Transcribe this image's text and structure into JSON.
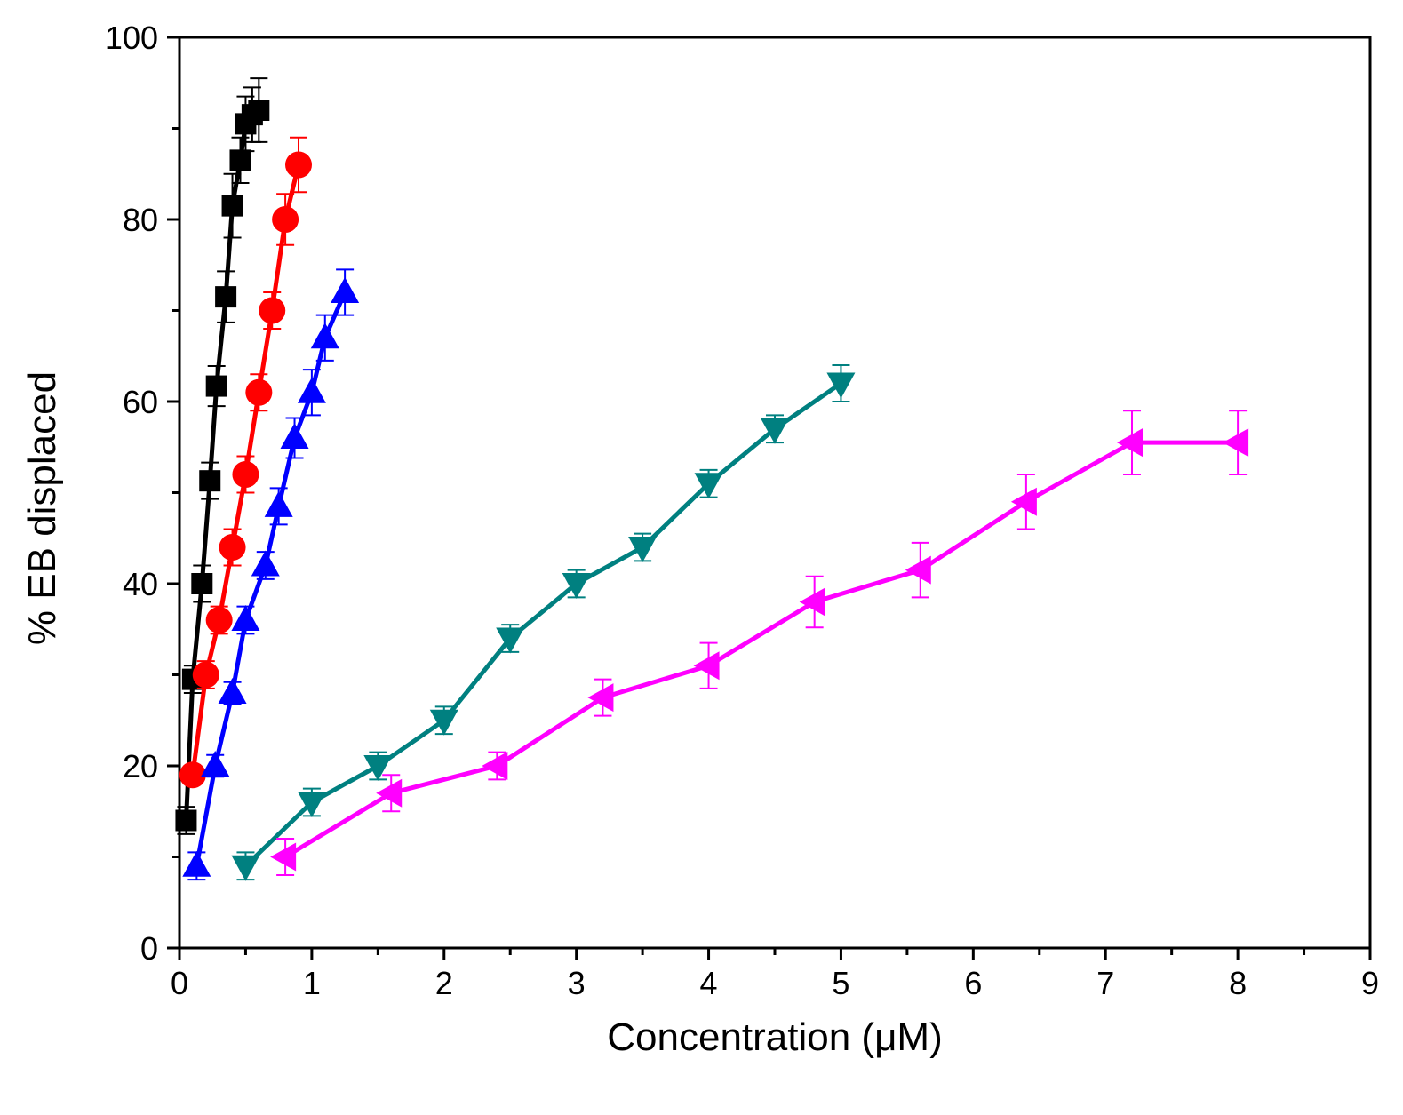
{
  "chart_data": {
    "type": "line",
    "title": "",
    "xlabel": "Concentration (μM)",
    "ylabel": "% EB displaced",
    "xlim": [
      0,
      9
    ],
    "ylim": [
      0,
      100
    ],
    "xticks": [
      0,
      1,
      2,
      3,
      4,
      5,
      6,
      7,
      8,
      9
    ],
    "yticks": [
      0,
      20,
      40,
      60,
      80,
      100
    ],
    "xtick_labels": [
      "0",
      "1",
      "2",
      "3",
      "4",
      "5",
      "6",
      "7",
      "8",
      "9"
    ],
    "ytick_labels": [
      "0",
      "20",
      "40",
      "60",
      "80",
      "100"
    ],
    "legend": "none",
    "series": [
      {
        "name": "black squares",
        "color": "#000000",
        "marker": "square",
        "x": [
          0.05,
          0.1,
          0.17,
          0.23,
          0.28,
          0.35,
          0.4,
          0.46,
          0.5,
          0.55,
          0.6
        ],
        "y": [
          14,
          29.5,
          40,
          51.3,
          61.7,
          71.5,
          81.5,
          86.5,
          90.5,
          91.5,
          92
        ],
        "err": [
          1.5,
          1.5,
          2,
          2,
          2.2,
          2.8,
          3.5,
          2.5,
          3,
          3,
          3.5
        ]
      },
      {
        "name": "red circles",
        "color": "#ff0000",
        "marker": "circle",
        "x": [
          0.1,
          0.2,
          0.3,
          0.4,
          0.5,
          0.6,
          0.7,
          0.8,
          0.9
        ],
        "y": [
          19,
          30,
          36,
          44,
          52,
          61,
          70,
          80,
          86
        ],
        "err": [
          1,
          1.5,
          1.5,
          2,
          2,
          2,
          2,
          2.8,
          3
        ]
      },
      {
        "name": "blue triangles up",
        "color": "#0000ff",
        "marker": "triangle-up",
        "x": [
          0.13,
          0.27,
          0.4,
          0.5,
          0.65,
          0.75,
          0.87,
          1.0,
          1.1,
          1.25
        ],
        "y": [
          9,
          20,
          28,
          36,
          42,
          48.5,
          56,
          61,
          67,
          72
        ],
        "err": [
          1.5,
          1.2,
          1.2,
          1.5,
          1.5,
          2,
          2.2,
          2.5,
          2.5,
          2.5
        ]
      },
      {
        "name": "teal triangles down",
        "color": "#008080",
        "marker": "triangle-down",
        "x": [
          0.5,
          1.0,
          1.5,
          2.0,
          2.5,
          3.0,
          3.5,
          4.0,
          4.5,
          5.0
        ],
        "y": [
          9,
          16,
          20,
          25,
          34,
          40,
          44,
          51,
          57,
          62
        ],
        "err": [
          1.5,
          1.5,
          1.5,
          1.5,
          1.5,
          1.5,
          1.5,
          1.5,
          1.5,
          2
        ]
      },
      {
        "name": "magenta triangles left",
        "color": "#ff00ff",
        "marker": "triangle-left",
        "x": [
          0.8,
          1.6,
          2.4,
          3.2,
          4.0,
          4.8,
          5.6,
          6.4,
          7.2,
          8.0
        ],
        "y": [
          10,
          17,
          20,
          27.5,
          31,
          38,
          41.5,
          49,
          55.5,
          55.5
        ],
        "err": [
          2,
          2,
          1.5,
          2,
          2.5,
          2.8,
          3,
          3,
          3.5,
          3.5
        ]
      }
    ]
  }
}
